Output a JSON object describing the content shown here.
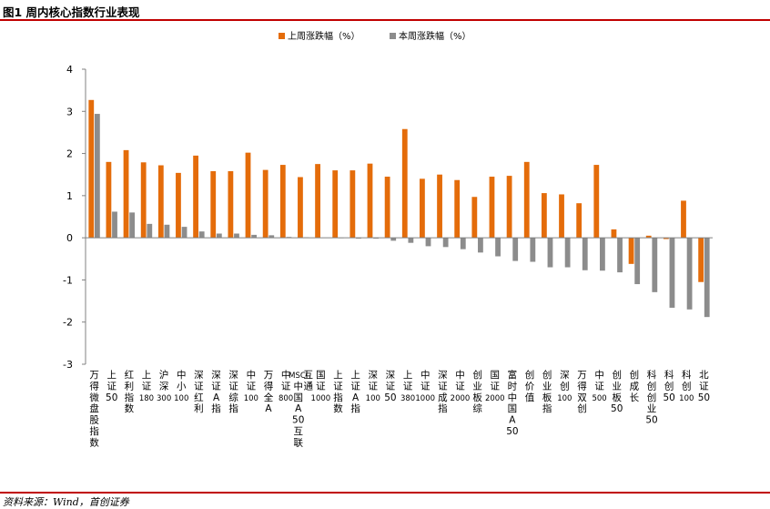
{
  "figure_title": "图1 周内核心指数行业表现",
  "source_note": "资料来源：Wind，首创证券",
  "colors": {
    "series1": "#e46c0a",
    "series2": "#8c8c8c",
    "rule": "#c00000",
    "axis": "#808080"
  },
  "chart_data": {
    "type": "bar",
    "title": "",
    "xlabel": "",
    "ylabel": "",
    "ylim": [
      -3,
      4
    ],
    "yticks": [
      4,
      3,
      2,
      1,
      0,
      -1,
      -2,
      -3
    ],
    "grid": false,
    "legend_position": "top-center",
    "categories": [
      "万得微盘股指数",
      "上证50",
      "红利指数",
      "上证180",
      "沪深300",
      "中小100",
      "深证红利",
      "深证A指",
      "深证综指",
      "中证100",
      "万得全A",
      "中证800",
      "MSCI中国A50互联互通",
      "国证1000",
      "上证指数",
      "上证A指",
      "深证100",
      "深证50",
      "上证380",
      "中证1000",
      "深证成指",
      "中证2000",
      "创业板综",
      "国证2000",
      "富时中国A50",
      "创价值",
      "创业板指",
      "深创100",
      "万得双创",
      "中证500",
      "创业板50",
      "创成长",
      "科创创业50",
      "科创50",
      "科创100",
      "北证50"
    ],
    "series": [
      {
        "name": "上周涨跌幅（%）",
        "values": [
          3.27,
          1.8,
          2.08,
          1.79,
          1.72,
          1.54,
          1.95,
          1.58,
          1.58,
          2.02,
          1.61,
          1.73,
          1.44,
          1.75,
          1.6,
          1.6,
          1.76,
          1.45,
          2.58,
          1.4,
          1.5,
          1.37,
          0.97,
          1.45,
          1.47,
          1.8,
          1.06,
          1.03,
          0.82,
          1.73,
          0.2,
          -0.62,
          0.05,
          -0.03,
          0.88,
          -1.05
        ]
      },
      {
        "name": "本周涨跌幅（%）",
        "values": [
          2.94,
          0.62,
          0.6,
          0.33,
          0.31,
          0.26,
          0.15,
          0.1,
          0.1,
          0.07,
          0.06,
          0.02,
          0.01,
          0.0,
          -0.01,
          -0.02,
          -0.02,
          -0.07,
          -0.12,
          -0.2,
          -0.22,
          -0.27,
          -0.35,
          -0.44,
          -0.55,
          -0.57,
          -0.7,
          -0.7,
          -0.77,
          -0.78,
          -0.82,
          -1.1,
          -1.29,
          -1.66,
          -1.7,
          -1.88
        ]
      }
    ]
  }
}
